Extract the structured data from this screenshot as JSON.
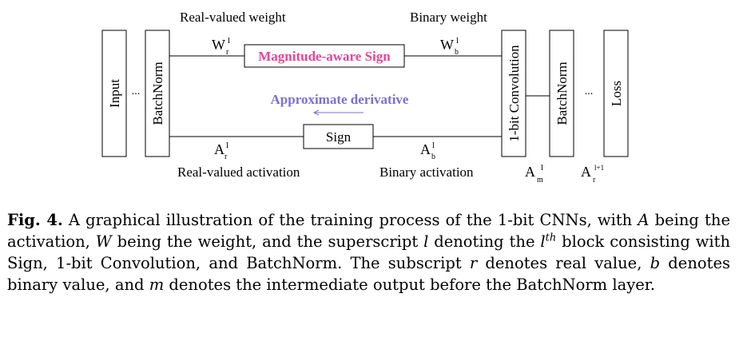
{
  "diagram": {
    "label_real_weight": "Real-valued weight",
    "label_binary_weight": "Binary weight",
    "label_real_activation": "Real-valued activation",
    "label_binary_activation": "Binary activation",
    "sym_wr_main": "W",
    "sym_wr_sub": "r",
    "sym_wr_sup": "l",
    "sym_wb_main": "W",
    "sym_wb_sub": "b",
    "sym_wb_sup": "l",
    "sym_ar_main": "A",
    "sym_ar_sub": "r",
    "sym_ar_sup": "l",
    "sym_ab_main": "A",
    "sym_ab_sub": "b",
    "sym_ab_sup": "l",
    "sym_am_main": "A",
    "sym_am_sub": "m",
    "sym_am_sup": "l",
    "sym_ar1_main": "A",
    "sym_ar1_sub": "r",
    "sym_ar1_sup": "l+1",
    "box_magnitude_sign": "Magnitude-aware Sign",
    "box_sign": "Sign",
    "approx_derivative": "Approximate derivative",
    "block_input": "Input",
    "block_batchnorm_1": "BatchNorm",
    "block_conv": "1-bit Convolution",
    "block_batchnorm_2": "BatchNorm",
    "block_loss": "Loss",
    "ellipsis_1": "...",
    "ellipsis_2": "...",
    "colors": {
      "magnitude_text": "#e8449a",
      "derivative_text": "#7a6fd6",
      "line": "#000000"
    }
  },
  "caption": {
    "fig_label": "Fig. 4.",
    "part1": " A graphical illustration of the training process of the 1-bit CNNs, with ",
    "var_a": "A",
    "part2": " being the activation, ",
    "var_w": "W",
    "part3": " being the weight, and the superscript ",
    "var_l": "l",
    "part4": " denoting the ",
    "var_l2": "l",
    "sup_th": "th",
    "part5": " block consisting with Sign, 1-bit Convolution, and BatchNorm. The subscript ",
    "var_r": "r",
    "part6": " denotes real value, ",
    "var_b": "b",
    "part7": " denotes binary value, and ",
    "var_m": "m",
    "part8": " denotes the intermediate output before the BatchNorm layer."
  }
}
